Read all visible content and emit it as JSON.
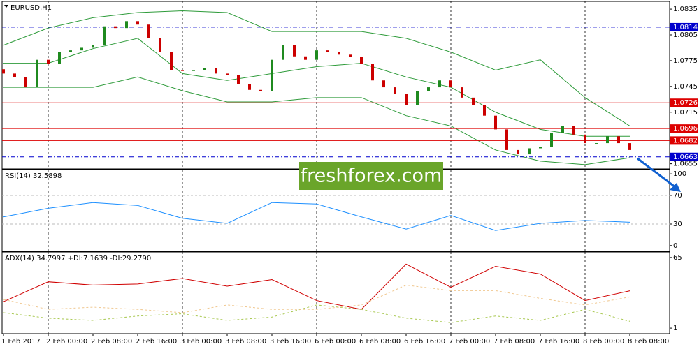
{
  "watermark": "freshforex.com",
  "chart_data": [
    {
      "type": "candlestick",
      "title": "EURUSD,H1",
      "categories": [
        "1 Feb 2017",
        null,
        null,
        null,
        "2 Feb 00:00",
        null,
        null,
        null,
        "2 Feb 08:00",
        null,
        null,
        null,
        "2 Feb 16:00",
        null,
        null,
        null,
        "3 Feb 00:00",
        null,
        null,
        null,
        "3 Feb 08:00",
        null,
        null,
        null,
        "3 Feb 16:00",
        null,
        null,
        null,
        "6 Feb 00:00",
        null,
        null,
        null,
        "6 Feb 08:00",
        null,
        null,
        null,
        "6 Feb 16:00",
        null,
        null,
        null,
        "7 Feb 00:00",
        null,
        null,
        null,
        "7 Feb 08:00",
        null,
        null,
        null,
        "7 Feb 16:00",
        null,
        null,
        null,
        "8 Feb 00:00",
        null,
        null,
        null,
        "8 Feb 08:00"
      ],
      "open": [
        1.0765,
        1.076,
        1.0756,
        1.0744,
        1.0776,
        1.0771,
        1.0785,
        1.0787,
        1.079,
        1.0793,
        1.0815,
        1.0813,
        1.0821,
        1.0817,
        1.0801,
        1.0785,
        1.0764,
        1.0763,
        1.0764,
        1.0766,
        1.076,
        1.0758,
        1.0748,
        1.0741,
        1.074,
        1.0776,
        1.0793,
        1.078,
        1.0776,
        1.0787,
        1.0785,
        1.0782,
        1.0779,
        1.0771,
        1.0752,
        1.0744,
        1.0736,
        1.0723,
        1.074,
        1.0744,
        1.0752,
        1.0744,
        1.0732,
        1.0723,
        1.0711,
        1.0695,
        1.0671,
        1.0666,
        1.0673,
        1.0675,
        1.0691,
        1.0699,
        1.0689,
        1.0679,
        1.0679,
        1.0687,
        1.0679
      ],
      "close": [
        1.076,
        1.0756,
        1.0744,
        1.0776,
        1.0771,
        1.0785,
        1.0787,
        1.079,
        1.0793,
        1.0815,
        1.0813,
        1.0821,
        1.0817,
        1.0801,
        1.0785,
        1.0764,
        1.0763,
        1.0764,
        1.0766,
        1.076,
        1.0758,
        1.0748,
        1.0741,
        1.074,
        1.0776,
        1.0793,
        1.078,
        1.0776,
        1.0787,
        1.0785,
        1.0782,
        1.0779,
        1.0771,
        1.0752,
        1.0744,
        1.0736,
        1.0723,
        1.074,
        1.0744,
        1.0752,
        1.0744,
        1.0732,
        1.0723,
        1.0711,
        1.0695,
        1.0671,
        1.0666,
        1.0673,
        1.0675,
        1.0691,
        1.0699,
        1.0689,
        1.0679,
        1.0679,
        1.0687,
        1.0679,
        1.0671
      ],
      "up_color": "#1f8a1f",
      "down_color": "#cc0000",
      "bands": {
        "x": [
          0,
          4,
          8,
          12,
          16,
          20,
          24,
          28,
          32,
          36,
          40,
          44,
          48,
          52,
          56
        ],
        "color": "#2e9b3a",
        "series": [
          {
            "values": [
              1.0793,
              1.0813,
              1.0825,
              1.0831,
              1.0833,
              1.0831,
              1.0809,
              1.0809,
              1.0809,
              1.0801,
              1.0785,
              1.0764,
              1.0776,
              1.0732,
              1.0699
            ]
          },
          {
            "values": [
              1.0772,
              1.0772,
              1.0789,
              1.0801,
              1.076,
              1.0752,
              1.076,
              1.0768,
              1.0772,
              1.0756,
              1.0744,
              1.0715,
              1.0695,
              1.0687,
              1.0687
            ]
          },
          {
            "values": [
              1.0744,
              1.0744,
              1.0744,
              1.0756,
              1.074,
              1.0727,
              1.0727,
              1.0732,
              1.0732,
              1.0711,
              1.0699,
              1.0671,
              1.0658,
              1.0654,
              1.0662
            ]
          }
        ]
      },
      "levels": [
        {
          "value": 1.0814,
          "color": "#0000cd",
          "style": "dashdot"
        },
        {
          "value": 1.0726,
          "color": "#dd0000",
          "style": "solid"
        },
        {
          "value": 1.0696,
          "color": "#dd0000",
          "style": "solid"
        },
        {
          "value": 1.0682,
          "color": "#dd0000",
          "style": "solid"
        },
        {
          "value": 1.0663,
          "color": "#0000cd",
          "style": "dashdot"
        }
      ],
      "ylim": [
        1.0649,
        1.0844
      ],
      "yticks": [
        1.0835,
        1.0805,
        1.0775,
        1.0745,
        1.0715,
        1.0655
      ]
    },
    {
      "type": "line",
      "title": "RSI(14) 32.5898",
      "x": [
        0,
        4,
        8,
        12,
        16,
        20,
        24,
        28,
        32,
        36,
        40,
        44,
        48,
        52,
        56
      ],
      "series": [
        {
          "color": "#1e90ff",
          "style": "solid",
          "values": [
            40,
            52,
            60,
            56,
            38,
            31,
            60,
            58,
            40,
            23,
            42,
            21,
            31,
            35,
            32.5898
          ]
        }
      ],
      "levels": [
        70,
        30
      ],
      "ylim": [
        -8,
        106
      ],
      "yticks": [
        100,
        70,
        30,
        0
      ]
    },
    {
      "type": "line",
      "title": "ADX(14) 34.7997 +DI:7.1639 -DI:29.2790",
      "x": [
        0,
        4,
        8,
        12,
        16,
        20,
        24,
        28,
        32,
        36,
        40,
        44,
        48,
        52,
        56
      ],
      "series": [
        {
          "color": "#d00000",
          "style": "solid",
          "values": [
            25,
            43,
            40,
            41,
            46,
            39,
            45,
            26,
            18,
            59,
            38,
            57,
            50,
            26,
            34.7997
          ]
        },
        {
          "color": "#a8c850",
          "style": "dashed",
          "values": [
            15,
            10,
            8,
            12,
            14,
            8,
            11,
            22,
            18,
            10,
            6,
            12,
            8,
            18,
            7.1639
          ]
        },
        {
          "color": "#f0c890",
          "style": "dashed",
          "values": [
            27,
            18,
            20,
            18,
            15,
            22,
            18,
            18,
            22,
            40,
            35,
            35,
            28,
            22,
            29.279
          ]
        }
      ],
      "ylim": [
        -4,
        70
      ],
      "yticks": [
        65,
        1
      ]
    }
  ]
}
